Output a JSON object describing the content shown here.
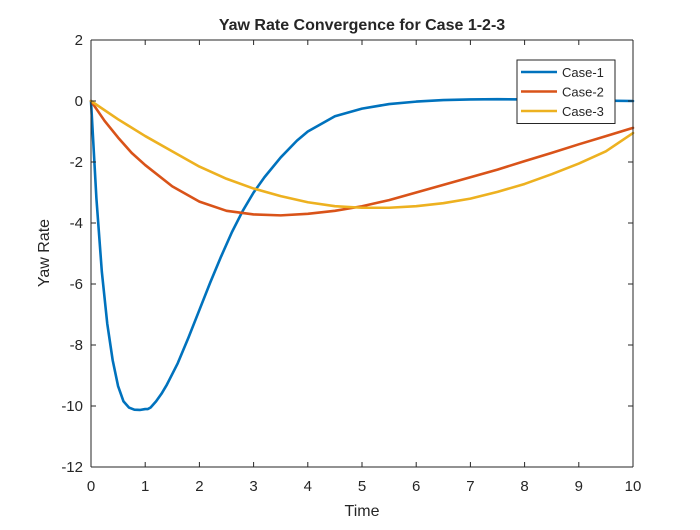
{
  "chart_data": {
    "type": "line",
    "title": "Yaw Rate Convergence for Case 1-2-3",
    "xlabel": "Time",
    "ylabel": "Yaw Rate",
    "xlim": [
      0,
      10
    ],
    "ylim": [
      -12,
      2
    ],
    "xticks": [
      0,
      1,
      2,
      3,
      4,
      5,
      6,
      7,
      8,
      9,
      10
    ],
    "yticks": [
      -12,
      -10,
      -8,
      -6,
      -4,
      -2,
      0,
      2
    ],
    "grid": false,
    "legend_position": "top-right",
    "series": [
      {
        "name": "Case-1",
        "color": "#0072BD",
        "x": [
          0,
          0.1,
          0.2,
          0.3,
          0.4,
          0.5,
          0.6,
          0.7,
          0.8,
          0.9,
          1.0,
          1.05,
          1.1,
          1.2,
          1.3,
          1.4,
          1.6,
          1.8,
          2.0,
          2.2,
          2.4,
          2.6,
          2.8,
          3.0,
          3.2,
          3.5,
          3.8,
          4.0,
          4.5,
          5.0,
          5.5,
          6.0,
          6.5,
          7.0,
          7.5,
          8.0,
          8.5,
          9.0,
          9.5,
          10.0
        ],
        "values": [
          0,
          -3.2,
          -5.6,
          -7.3,
          -8.5,
          -9.35,
          -9.85,
          -10.05,
          -10.12,
          -10.13,
          -10.1,
          -10.1,
          -10.05,
          -9.85,
          -9.6,
          -9.3,
          -8.6,
          -7.75,
          -6.85,
          -5.95,
          -5.1,
          -4.3,
          -3.6,
          -3.0,
          -2.5,
          -1.85,
          -1.3,
          -1.0,
          -0.5,
          -0.25,
          -0.1,
          -0.02,
          0.03,
          0.05,
          0.06,
          0.05,
          0.04,
          0.02,
          0.01,
          0.0
        ]
      },
      {
        "name": "Case-2",
        "color": "#D95319",
        "x": [
          0,
          0.25,
          0.5,
          0.75,
          1.0,
          1.5,
          2.0,
          2.5,
          3.0,
          3.5,
          4.0,
          4.5,
          5.0,
          5.5,
          6.0,
          6.5,
          7.0,
          7.5,
          8.0,
          8.5,
          9.0,
          9.5,
          10.0
        ],
        "values": [
          0,
          -0.65,
          -1.2,
          -1.7,
          -2.1,
          -2.8,
          -3.3,
          -3.6,
          -3.72,
          -3.75,
          -3.7,
          -3.6,
          -3.45,
          -3.25,
          -3.0,
          -2.75,
          -2.5,
          -2.25,
          -1.97,
          -1.7,
          -1.42,
          -1.15,
          -0.88
        ]
      },
      {
        "name": "Case-3",
        "color": "#EDB120",
        "x": [
          0,
          0.5,
          1.0,
          1.5,
          2.0,
          2.5,
          3.0,
          3.5,
          4.0,
          4.5,
          5.0,
          5.5,
          6.0,
          6.5,
          7.0,
          7.5,
          8.0,
          8.5,
          9.0,
          9.5,
          10.0
        ],
        "values": [
          0,
          -0.6,
          -1.15,
          -1.65,
          -2.15,
          -2.55,
          -2.87,
          -3.12,
          -3.32,
          -3.45,
          -3.5,
          -3.5,
          -3.45,
          -3.35,
          -3.2,
          -2.98,
          -2.72,
          -2.4,
          -2.05,
          -1.65,
          -1.05
        ]
      }
    ]
  }
}
